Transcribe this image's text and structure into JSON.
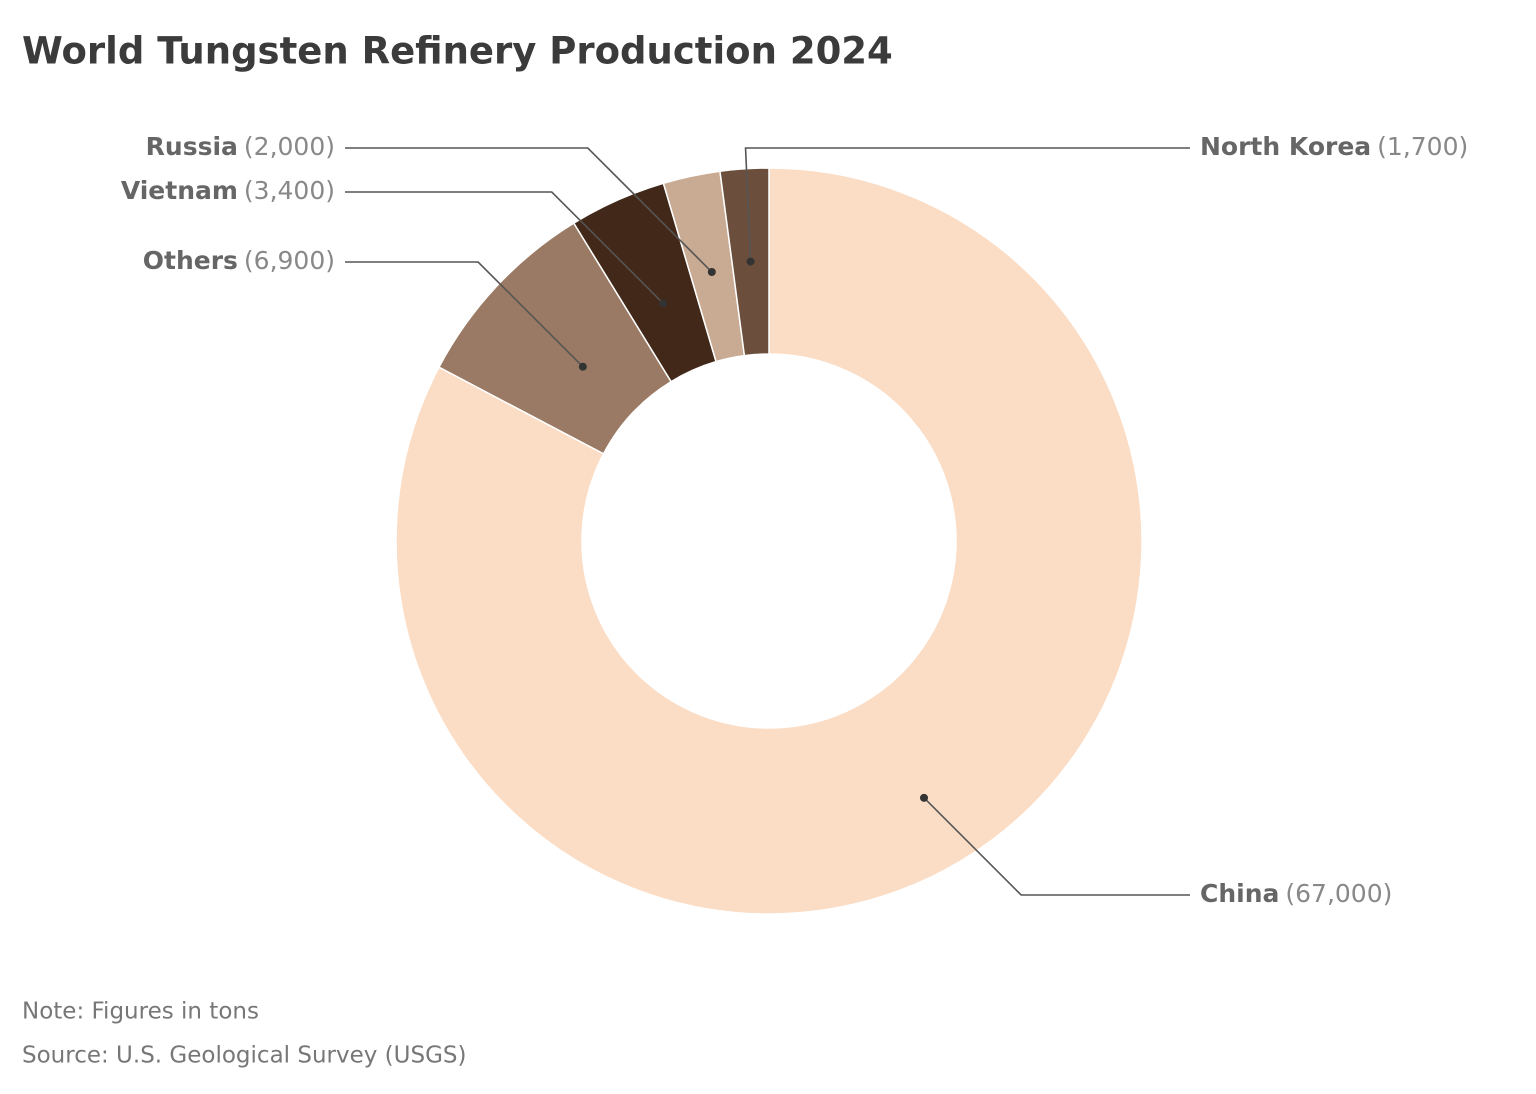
{
  "chart_data": {
    "type": "donut",
    "title": "World Tungsten Refinery Production 2024",
    "categories": [
      "China",
      "Others",
      "Vietnam",
      "Russia",
      "North Korea"
    ],
    "values": [
      67000,
      6900,
      3400,
      2000,
      1700
    ],
    "value_labels": [
      "(67,000)",
      "(6,900)",
      "(3,400)",
      "(2,000)",
      "(1,700)"
    ],
    "colors": [
      "#fbdcc4",
      "#9a7a64",
      "#422818",
      "#c9aa93",
      "#6b4f3c"
    ],
    "note": "Note: Figures in tons",
    "source": "Source: U.S. Geological Survey (USGS)"
  }
}
